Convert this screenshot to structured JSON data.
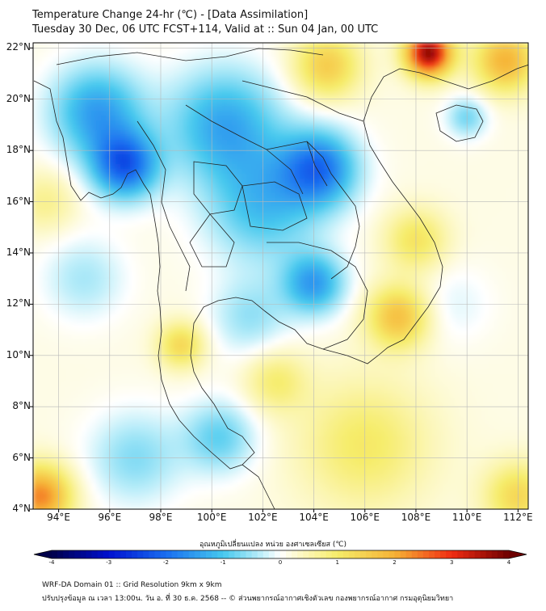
{
  "header": {
    "title_line1": "Temperature Change 24-hr (℃) - [Data Assimilation]",
    "title_line2": "Tuesday 30 Dec, 06 UTC FCST+114, Valid at :: Sun 04 Jan, 00 UTC"
  },
  "map": {
    "lat_labels": [
      "22°N",
      "20°N",
      "18°N",
      "16°N",
      "14°N",
      "12°N",
      "10°N",
      "8°N",
      "6°N",
      "4°N"
    ],
    "lon_labels": [
      "94°E",
      "96°E",
      "98°E",
      "100°E",
      "102°E",
      "104°E",
      "106°E",
      "108°E",
      "110°E",
      "112°E"
    ],
    "extent": {
      "lon_min": 93,
      "lon_max": 112.4,
      "lat_min": 4,
      "lat_max": 22.2
    },
    "anomalies": [
      {
        "name": "cold-core-myanmar",
        "lon": 96.6,
        "lat": 17.4,
        "value": -2.2,
        "spread": 1.3
      },
      {
        "name": "cold-north-myanmar",
        "lon": 95.5,
        "lat": 19.5,
        "value": -1.6,
        "spread": 1.8
      },
      {
        "name": "cold-north-thailand",
        "lon": 100.5,
        "lat": 19.0,
        "value": -1.5,
        "spread": 2.2
      },
      {
        "name": "cold-laos-east",
        "lon": 104.2,
        "lat": 17.3,
        "value": -2.0,
        "spread": 1.5
      },
      {
        "name": "cold-central-thailand",
        "lon": 102.0,
        "lat": 15.8,
        "value": -1.2,
        "spread": 2.2
      },
      {
        "name": "cold-cambodia",
        "lon": 104.0,
        "lat": 12.8,
        "value": -1.6,
        "spread": 1.2
      },
      {
        "name": "cold-gulf",
        "lon": 101.5,
        "lat": 11.5,
        "value": -0.7,
        "spread": 1.5
      },
      {
        "name": "cold-malay",
        "lon": 100.3,
        "lat": 6.8,
        "value": -1.0,
        "spread": 1.4
      },
      {
        "name": "cold-andaman-south",
        "lon": 97.0,
        "lat": 6.0,
        "value": -0.8,
        "spread": 1.8
      },
      {
        "name": "cold-andaman",
        "lon": 95.0,
        "lat": 13.0,
        "value": -0.6,
        "spread": 1.6
      },
      {
        "name": "cold-hainan",
        "lon": 110.0,
        "lat": 19.3,
        "value": -0.9,
        "spread": 0.8
      },
      {
        "name": "cold-sea-east",
        "lon": 109.5,
        "lat": 12.0,
        "value": -0.3,
        "spread": 1.5
      },
      {
        "name": "warm-north-vietnam",
        "lon": 108.5,
        "lat": 21.8,
        "value": 3.6,
        "spread": 0.9
      },
      {
        "name": "warm-south-china",
        "lon": 111.5,
        "lat": 21.5,
        "value": 1.8,
        "spread": 1.2
      },
      {
        "name": "warm-laos-north",
        "lon": 104.5,
        "lat": 21.3,
        "value": 1.4,
        "spread": 1.3
      },
      {
        "name": "warm-vietnam-south",
        "lon": 107.3,
        "lat": 11.5,
        "value": 1.6,
        "spread": 1.2
      },
      {
        "name": "warm-vietnam-central",
        "lon": 108.0,
        "lat": 14.5,
        "value": 1.0,
        "spread": 1.2
      },
      {
        "name": "warm-myanmar-south",
        "lon": 98.8,
        "lat": 10.4,
        "value": 1.2,
        "spread": 0.9
      },
      {
        "name": "warm-gulf-south",
        "lon": 102.5,
        "lat": 9.0,
        "value": 0.8,
        "spread": 1.2
      },
      {
        "name": "warm-sw-corner",
        "lon": 93.3,
        "lat": 4.5,
        "value": 2.2,
        "spread": 1.2
      },
      {
        "name": "warm-east-sea",
        "lon": 106.0,
        "lat": 6.5,
        "value": 0.9,
        "spread": 2.5
      },
      {
        "name": "warm-se-corner",
        "lon": 112.0,
        "lat": 4.5,
        "value": 1.2,
        "spread": 1.3
      },
      {
        "name": "warm-bay-bengal",
        "lon": 93.5,
        "lat": 16.0,
        "value": 0.6,
        "spread": 1.2
      }
    ]
  },
  "colorbar": {
    "title": "อุณหภูมิเปลี่ยนแปลง หน่วย องศาเซลเซียส (℃)",
    "tick_labels": [
      "-4",
      "-3",
      "-2",
      "-1",
      "0",
      "1",
      "2",
      "3",
      "4"
    ],
    "min": -4,
    "max": 4,
    "stops": [
      {
        "v": -4,
        "c": "#00004a"
      },
      {
        "v": -3,
        "c": "#0010d0"
      },
      {
        "v": -2,
        "c": "#1a6ef0"
      },
      {
        "v": -1,
        "c": "#46c8ee"
      },
      {
        "v": -0.3,
        "c": "#c4f0fa"
      },
      {
        "v": 0,
        "c": "#ffffff"
      },
      {
        "v": 0.3,
        "c": "#fdf9cc"
      },
      {
        "v": 1,
        "c": "#f6ec6a"
      },
      {
        "v": 2,
        "c": "#f6b236"
      },
      {
        "v": 3,
        "c": "#f02c12"
      },
      {
        "v": 4,
        "c": "#6e0000"
      }
    ]
  },
  "footer": {
    "line1": "WRF-DA Domain 01 :: Grid Resolution 9km x 9km",
    "line2": "ปรับปรุงข้อมูล ณ เวลา 13:00น. วัน อ. ที่ 30 ธ.ค. 2568 -- © ส่วนพยากรณ์อากาศเชิงตัวเลข กองพยากรณ์อากาศ กรมอุตุนิยมวิทยา"
  }
}
